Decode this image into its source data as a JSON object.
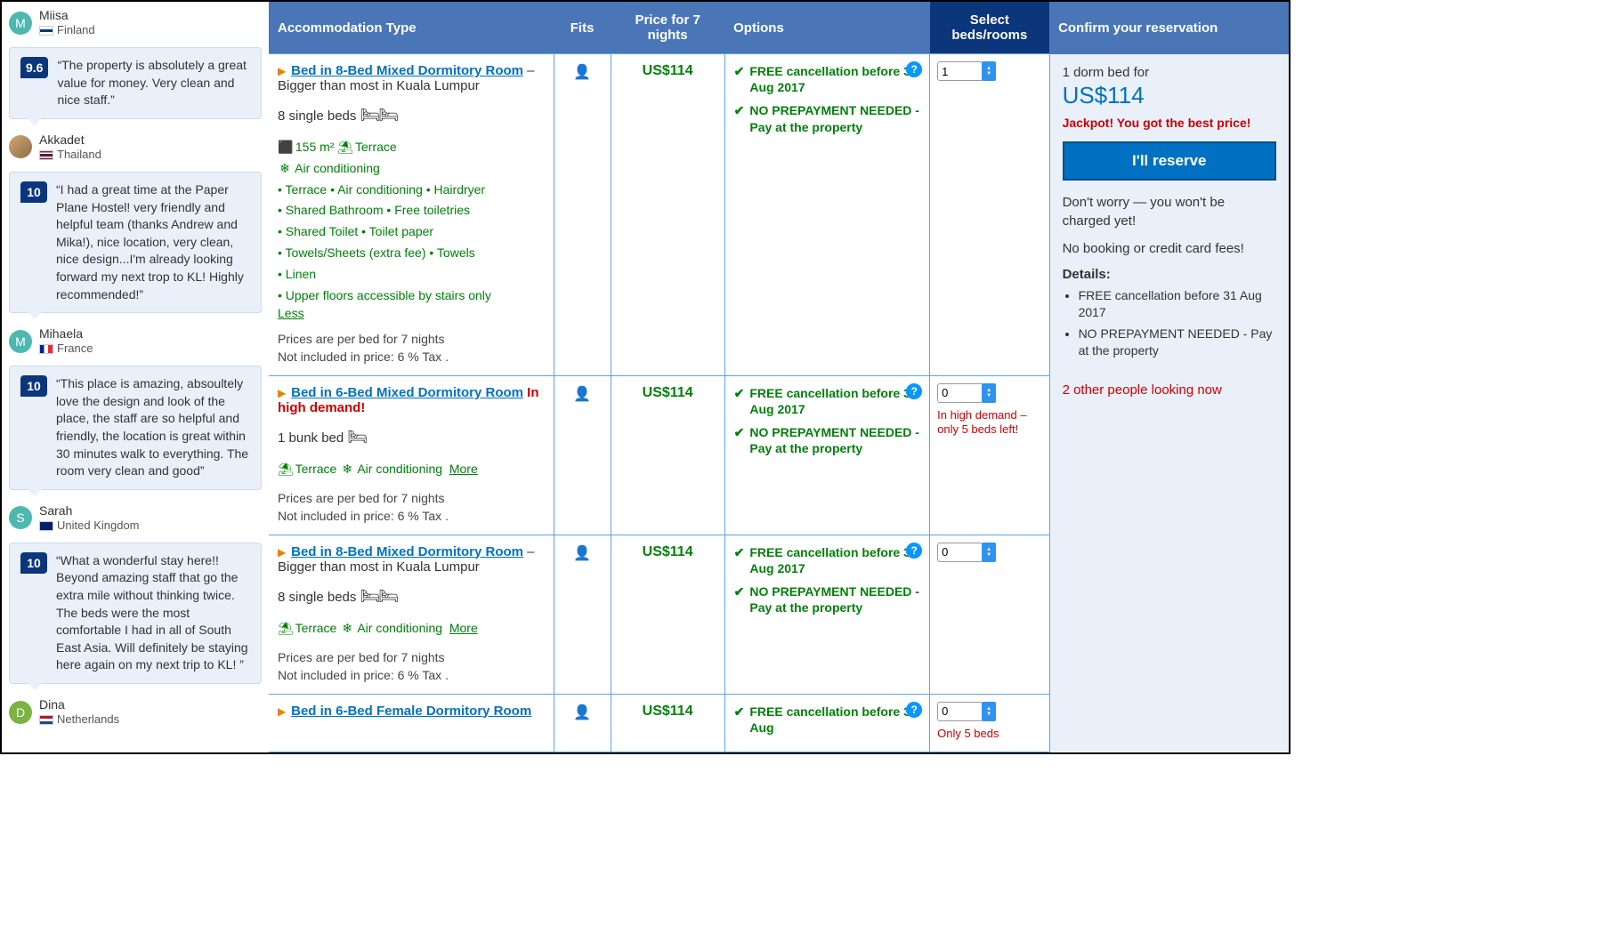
{
  "colors": {
    "header_bg": "#4a76b8",
    "header_selected_bg": "#0b367c",
    "link_blue": "#0071c2",
    "green": "#008009",
    "red": "#c00",
    "bubble_bg": "#e9f0fa",
    "border_blue": "#5da2e0"
  },
  "reviews": [
    {
      "name": "Miisa",
      "country": "Finland",
      "initial": "M",
      "avatar_class": "avatar-teal",
      "flag_css": "linear-gradient(#fff 33%,#003580 33% 66%,#fff 66%)",
      "score": null,
      "text": null
    },
    {
      "name": "Akkadet",
      "country": "Thailand",
      "initial": "",
      "avatar_class": "avatar-img",
      "flag_css": "linear-gradient(#a51931 16%,#fff 16% 33%,#2d2a4a 33% 66%,#fff 66% 83%,#a51931 83%)",
      "score": "9.6",
      "text": "“The property is absolutely a great value for money. Very clean and nice staff.”"
    },
    {
      "name": "Mihaela",
      "country": "France",
      "initial": "M",
      "avatar_class": "avatar-teal",
      "flag_css": "linear-gradient(90deg,#002395 33%,#fff 33% 66%,#ed2939 66%)",
      "score": "10",
      "text": "“I had a great time at the Paper Plane Hostel! very friendly and helpful team (thanks Andrew and Mika!), nice location, very clean, nice design...I'm already looking forward my next trop to KL! Highly recommended!”"
    },
    {
      "name": "Sarah",
      "country": "United Kingdom",
      "initial": "S",
      "avatar_class": "avatar-teal",
      "flag_css": "linear-gradient(#012169,#012169)",
      "score": "10",
      "text": "“This place is amazing, absoultely love the design and look of the place, the staff are so helpful and friendly, the location is great within 30 minutes walk to everything. The room very clean and good”"
    },
    {
      "name": "Dina",
      "country": "Netherlands",
      "initial": "D",
      "avatar_class": "avatar-green",
      "flag_css": "linear-gradient(#ae1c28 33%,#fff 33% 66%,#21468b 66%)",
      "score": "10",
      "text": "“What a wonderful stay here!! Beyond amazing staff that go the extra mile without thinking twice. The beds were the most comfortable I had in all of South East Asia. Will definitely be staying here again on my next trip to KL! ”"
    }
  ],
  "table": {
    "headers": {
      "type": "Accommodation Type",
      "fits": "Fits",
      "price": "Price for 7 nights",
      "options": "Options",
      "select": "Select beds/rooms",
      "confirm": "Confirm your reservation"
    },
    "price_note1": "Prices are per bed for 7 nights",
    "price_note2": "Not included in price: 6 % Tax .",
    "options": {
      "opt1": "FREE cancellation before 31 Aug 2017",
      "opt2": "NO PREPAYMENT NEEDED - Pay at the property"
    },
    "rooms": [
      {
        "title": "Bed in 8-Bed Mixed Dormitory Room",
        "subtitle": " – Bigger than most in Kuala Lumpur",
        "demand": "",
        "beds": "8 single beds",
        "bed_glyph": "🛏🛏",
        "expanded": true,
        "feat1": "155 m²",
        "feat1_icon": "⬛",
        "feat2": "Terrace",
        "feat2_icon": "⛱",
        "feat3": "Air conditioning",
        "feat3_icon": "❄",
        "bullets": "• Terrace  • Air conditioning  • Hairdryer\n• Shared Bathroom  • Free toiletries\n• Shared Toilet  • Toilet paper\n• Towels/Sheets (extra fee)  • Towels\n• Linen\n• Upper floors accessible by stairs only",
        "toggle": "Less",
        "price": "US$114",
        "qty": "1",
        "warn": ""
      },
      {
        "title": "Bed in 6-Bed Mixed Dormitory Room",
        "subtitle": "",
        "demand": " In high demand!",
        "beds": "1 bunk bed",
        "bed_glyph": "🛏",
        "expanded": false,
        "feat1": "Terrace",
        "feat1_icon": "⛱",
        "feat2": "Air conditioning",
        "feat2_icon": "❄",
        "toggle": "More",
        "price": "US$114",
        "qty": "0",
        "warn": "In high demand – only 5 beds left!"
      },
      {
        "title": "Bed in 8-Bed Mixed Dormitory Room",
        "subtitle": " – Bigger than most in Kuala Lumpur",
        "demand": "",
        "beds": "8 single beds",
        "bed_glyph": "🛏🛏",
        "expanded": false,
        "feat1": "Terrace",
        "feat1_icon": "⛱",
        "feat2": "Air conditioning",
        "feat2_icon": "❄",
        "toggle": "More",
        "price": "US$114",
        "qty": "0",
        "warn": ""
      },
      {
        "title": "Bed in 6-Bed Female Dormitory Room",
        "subtitle": "",
        "demand": "",
        "beds": "",
        "bed_glyph": "",
        "expanded": false,
        "toggle": "",
        "price": "US$114",
        "qty": "0",
        "warn": "Only 5 beds"
      }
    ],
    "options_partial": "FREE cancellation before 31 Aug"
  },
  "confirm": {
    "line1": "1 dorm bed for",
    "price": "US$114",
    "jackpot": "Jackpot! You got the best price!",
    "button": "I'll reserve",
    "note1": "Don't worry — you won't be charged yet!",
    "note2": "No booking or credit card fees!",
    "details_head": "Details:",
    "details": [
      "FREE cancellation before 31 Aug 2017",
      "NO PREPAYMENT NEEDED - Pay at the property"
    ],
    "looking": "2 other people looking now"
  }
}
